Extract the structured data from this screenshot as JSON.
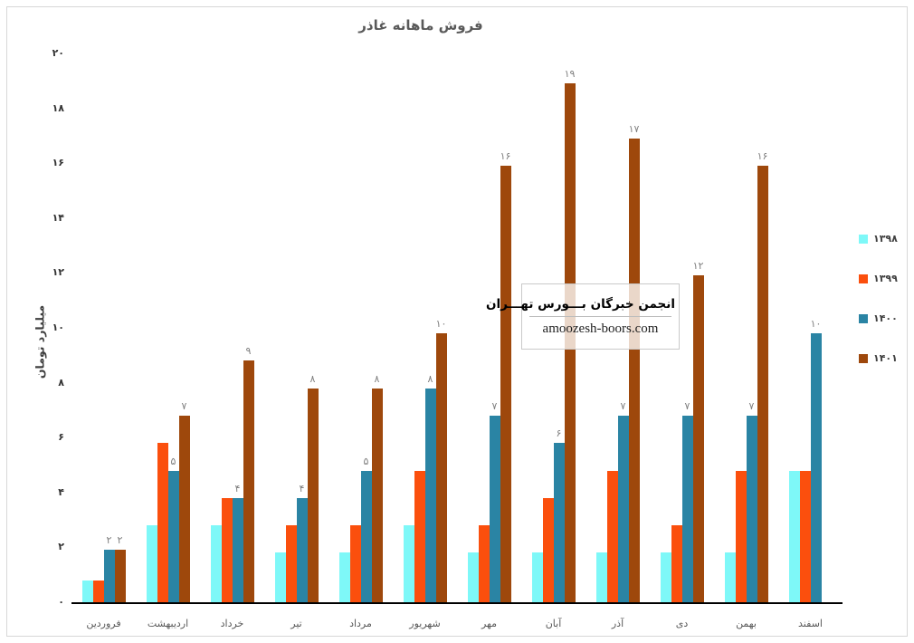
{
  "chart_data": {
    "type": "bar",
    "title": "فروش ماهانه غاذر",
    "ylabel": "میلیارد تومان",
    "xlabel": "",
    "ylim": [
      0,
      20
    ],
    "grid": false,
    "legend_position": "right",
    "y_ticks": [
      {
        "value": 0,
        "label": "۰"
      },
      {
        "value": 2,
        "label": "۲"
      },
      {
        "value": 4,
        "label": "۴"
      },
      {
        "value": 6,
        "label": "۶"
      },
      {
        "value": 8,
        "label": "۸"
      },
      {
        "value": 10,
        "label": "۱۰"
      },
      {
        "value": 12,
        "label": "۱۲"
      },
      {
        "value": 14,
        "label": "۱۴"
      },
      {
        "value": 16,
        "label": "۱۶"
      },
      {
        "value": 18,
        "label": "۱۸"
      },
      {
        "value": 20,
        "label": "۲۰"
      }
    ],
    "categories": [
      "فروردین",
      "اردیبهشت",
      "خرداد",
      "تیر",
      "مرداد",
      "شهریور",
      "مهر",
      "آبان",
      "آذر",
      "دی",
      "بهمن",
      "اسفند"
    ],
    "series": [
      {
        "name": "۱۳۹۸",
        "color": "#7EF8F8",
        "values": [
          0.8,
          2.8,
          2.8,
          1.8,
          1.8,
          2.8,
          1.8,
          1.8,
          1.8,
          1.8,
          1.8,
          4.8
        ],
        "labels": null
      },
      {
        "name": "۱۳۹۹",
        "color": "#FB4F0D",
        "values": [
          0.8,
          5.8,
          3.8,
          2.8,
          2.8,
          4.8,
          2.8,
          3.8,
          4.8,
          2.8,
          4.8,
          4.8
        ],
        "labels": null
      },
      {
        "name": "۱۴۰۰",
        "color": "#2A84A4",
        "values": [
          1.9,
          4.8,
          3.8,
          3.8,
          4.8,
          7.8,
          6.8,
          5.8,
          6.8,
          6.8,
          6.8,
          9.8
        ],
        "labels": [
          "۲",
          "۵",
          "۴",
          "۴",
          "۵",
          "۸",
          "۷",
          "۶",
          "۷",
          "۷",
          "۷",
          "۱۰"
        ]
      },
      {
        "name": "۱۴۰۱",
        "color": "#9E480C",
        "values": [
          1.9,
          6.8,
          8.8,
          7.8,
          7.8,
          9.8,
          15.9,
          18.9,
          16.9,
          11.9,
          15.9,
          null
        ],
        "labels": [
          "۲",
          "۷",
          "۹",
          "۸",
          "۸",
          "۱۰",
          "۱۶",
          "۱۹",
          "۱۷",
          "۱۲",
          "۱۶",
          ""
        ]
      }
    ]
  },
  "watermark": {
    "line1": "انجمن خبرگان بـــورس تهـــران",
    "line2": "amoozesh-boors.com"
  }
}
